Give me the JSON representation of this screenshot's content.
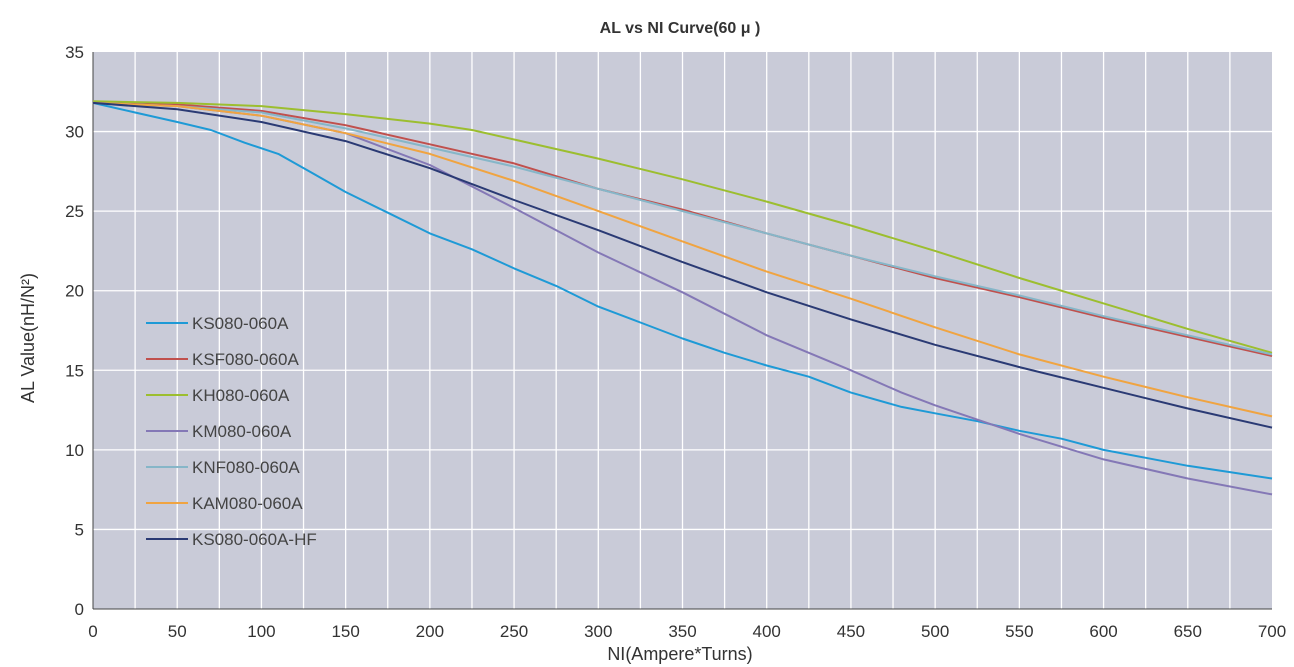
{
  "chart_data": {
    "type": "line",
    "title": "AL vs NI Curve(60 μ )",
    "xlabel": "NI(Ampere*Turns)",
    "ylabel": "AL Value(nH/N²)",
    "xlim": [
      0,
      700
    ],
    "ylim": [
      0,
      35
    ],
    "x_ticks": [
      0,
      50,
      100,
      150,
      200,
      250,
      300,
      350,
      400,
      450,
      500,
      550,
      600,
      650,
      700
    ],
    "y_ticks": [
      0,
      5,
      10,
      15,
      20,
      25,
      30,
      35
    ],
    "grid": true,
    "background": "#c9cbd8",
    "legend_position": "left",
    "series": [
      {
        "name": "KS080-060A",
        "color": "#1e9ad6",
        "points": [
          [
            0,
            31.8
          ],
          [
            25,
            31.2
          ],
          [
            50,
            30.6
          ],
          [
            70,
            30.1
          ],
          [
            90,
            29.3
          ],
          [
            110,
            28.6
          ],
          [
            130,
            27.4
          ],
          [
            150,
            26.2
          ],
          [
            175,
            24.9
          ],
          [
            200,
            23.6
          ],
          [
            225,
            22.6
          ],
          [
            250,
            21.4
          ],
          [
            275,
            20.3
          ],
          [
            300,
            19.0
          ],
          [
            325,
            18.0
          ],
          [
            350,
            17.0
          ],
          [
            375,
            16.1
          ],
          [
            400,
            15.3
          ],
          [
            425,
            14.6
          ],
          [
            450,
            13.6
          ],
          [
            480,
            12.7
          ],
          [
            500,
            12.3
          ],
          [
            525,
            11.8
          ],
          [
            550,
            11.2
          ],
          [
            575,
            10.7
          ],
          [
            600,
            10.0
          ],
          [
            625,
            9.5
          ],
          [
            650,
            9.0
          ],
          [
            675,
            8.6
          ],
          [
            700,
            8.2
          ]
        ]
      },
      {
        "name": "KSF080-060A",
        "color": "#c0504d",
        "points": [
          [
            0,
            31.8
          ],
          [
            50,
            31.7
          ],
          [
            100,
            31.3
          ],
          [
            150,
            30.4
          ],
          [
            200,
            29.2
          ],
          [
            250,
            28.0
          ],
          [
            300,
            26.4
          ],
          [
            350,
            25.1
          ],
          [
            400,
            23.6
          ],
          [
            450,
            22.2
          ],
          [
            500,
            20.8
          ],
          [
            550,
            19.6
          ],
          [
            600,
            18.3
          ],
          [
            650,
            17.1
          ],
          [
            700,
            15.9
          ]
        ]
      },
      {
        "name": "KH080-060A",
        "color": "#9cbe2f",
        "points": [
          [
            0,
            31.9
          ],
          [
            50,
            31.8
          ],
          [
            100,
            31.6
          ],
          [
            150,
            31.1
          ],
          [
            200,
            30.5
          ],
          [
            225,
            30.1
          ],
          [
            250,
            29.5
          ],
          [
            300,
            28.3
          ],
          [
            350,
            27.0
          ],
          [
            400,
            25.6
          ],
          [
            450,
            24.1
          ],
          [
            500,
            22.5
          ],
          [
            550,
            20.8
          ],
          [
            600,
            19.2
          ],
          [
            650,
            17.6
          ],
          [
            700,
            16.1
          ]
        ]
      },
      {
        "name": "KM080-060A",
        "color": "#8478b6",
        "points": [
          [
            0,
            31.8
          ],
          [
            50,
            31.6
          ],
          [
            100,
            31.0
          ],
          [
            150,
            29.9
          ],
          [
            200,
            27.9
          ],
          [
            250,
            25.2
          ],
          [
            300,
            22.4
          ],
          [
            350,
            19.9
          ],
          [
            400,
            17.2
          ],
          [
            450,
            15.0
          ],
          [
            480,
            13.6
          ],
          [
            500,
            12.8
          ],
          [
            550,
            11.0
          ],
          [
            600,
            9.4
          ],
          [
            650,
            8.2
          ],
          [
            700,
            7.2
          ]
        ]
      },
      {
        "name": "KNF080-060A",
        "color": "#86b6c8",
        "points": [
          [
            0,
            31.8
          ],
          [
            50,
            31.6
          ],
          [
            100,
            31.2
          ],
          [
            150,
            30.2
          ],
          [
            200,
            29.0
          ],
          [
            250,
            27.8
          ],
          [
            300,
            26.4
          ],
          [
            350,
            25.0
          ],
          [
            400,
            23.6
          ],
          [
            450,
            22.2
          ],
          [
            500,
            20.9
          ],
          [
            550,
            19.7
          ],
          [
            600,
            18.4
          ],
          [
            650,
            17.2
          ],
          [
            700,
            16.0
          ]
        ]
      },
      {
        "name": "KAM080-060A",
        "color": "#f0a441",
        "points": [
          [
            0,
            31.8
          ],
          [
            50,
            31.6
          ],
          [
            100,
            31.0
          ],
          [
            150,
            29.9
          ],
          [
            200,
            28.6
          ],
          [
            250,
            26.9
          ],
          [
            300,
            25.0
          ],
          [
            350,
            23.1
          ],
          [
            400,
            21.2
          ],
          [
            450,
            19.5
          ],
          [
            500,
            17.7
          ],
          [
            550,
            16.0
          ],
          [
            600,
            14.6
          ],
          [
            650,
            13.3
          ],
          [
            700,
            12.1
          ]
        ]
      },
      {
        "name": "KS080-060A-HF",
        "color": "#2a3a74",
        "points": [
          [
            0,
            31.8
          ],
          [
            50,
            31.4
          ],
          [
            100,
            30.6
          ],
          [
            150,
            29.4
          ],
          [
            200,
            27.7
          ],
          [
            250,
            25.7
          ],
          [
            300,
            23.8
          ],
          [
            350,
            21.8
          ],
          [
            400,
            19.9
          ],
          [
            450,
            18.2
          ],
          [
            500,
            16.6
          ],
          [
            550,
            15.2
          ],
          [
            600,
            13.9
          ],
          [
            650,
            12.6
          ],
          [
            700,
            11.4
          ]
        ]
      }
    ]
  }
}
